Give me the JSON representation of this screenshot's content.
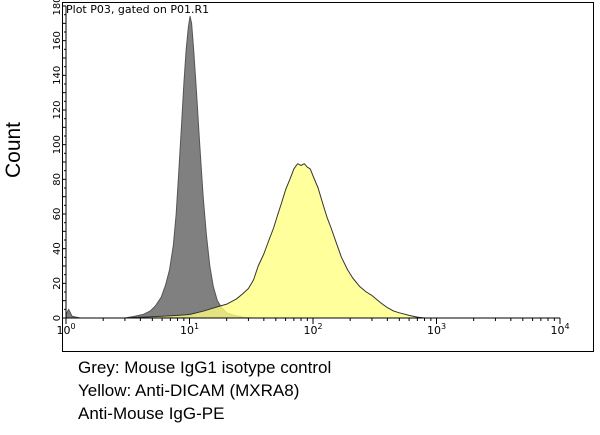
{
  "chart_data": {
    "type": "area",
    "title": "Plot P03, gated on P01.R1",
    "xlabel": "",
    "ylabel": "Count",
    "xscale": "log",
    "xlim": [
      1,
      10000
    ],
    "ylim": [
      0,
      180
    ],
    "x_ticks": [
      {
        "value": 1,
        "base": "10",
        "exp": "0"
      },
      {
        "value": 10,
        "base": "10",
        "exp": "1"
      },
      {
        "value": 100,
        "base": "10",
        "exp": "2"
      },
      {
        "value": 1000,
        "base": "10",
        "exp": "3"
      },
      {
        "value": 10000,
        "base": "10",
        "exp": "4"
      }
    ],
    "y_ticks": [
      0,
      20,
      40,
      60,
      80,
      100,
      120,
      140,
      160,
      180
    ],
    "grid": false,
    "series": [
      {
        "color": "#808080",
        "outline": "#555555",
        "points": [
          [
            1.0,
            2
          ],
          [
            1.05,
            5
          ],
          [
            1.12,
            1
          ],
          [
            1.3,
            0
          ],
          [
            3.0,
            0
          ],
          [
            3.6,
            1
          ],
          [
            4.2,
            2
          ],
          [
            4.8,
            4
          ],
          [
            5.3,
            7
          ],
          [
            5.9,
            12
          ],
          [
            6.4,
            19
          ],
          [
            6.9,
            28
          ],
          [
            7.4,
            42
          ],
          [
            7.8,
            60
          ],
          [
            8.2,
            85
          ],
          [
            8.6,
            110
          ],
          [
            9.0,
            135
          ],
          [
            9.4,
            155
          ],
          [
            9.8,
            168
          ],
          [
            10.1,
            174
          ],
          [
            10.4,
            170
          ],
          [
            10.8,
            155
          ],
          [
            11.4,
            130
          ],
          [
            12.1,
            100
          ],
          [
            12.9,
            70
          ],
          [
            13.7,
            48
          ],
          [
            14.6,
            30
          ],
          [
            15.6,
            18
          ],
          [
            16.8,
            10
          ],
          [
            18.2,
            6
          ],
          [
            20.0,
            3
          ],
          [
            23.0,
            1.5
          ],
          [
            27.0,
            0.5
          ],
          [
            32.0,
            0
          ]
        ]
      },
      {
        "color": "#FFFF80",
        "outline": "#333333",
        "points": [
          [
            1.0,
            0
          ],
          [
            3.0,
            0
          ],
          [
            6.0,
            1
          ],
          [
            8.0,
            1.5
          ],
          [
            10.0,
            2
          ],
          [
            13.0,
            4
          ],
          [
            16.0,
            6
          ],
          [
            20.0,
            8
          ],
          [
            24.0,
            11
          ],
          [
            27.0,
            14
          ],
          [
            30.0,
            17
          ],
          [
            33.0,
            22
          ],
          [
            36.0,
            30
          ],
          [
            40.0,
            37
          ],
          [
            44.0,
            45
          ],
          [
            48.0,
            52
          ],
          [
            52.0,
            60
          ],
          [
            56.0,
            67
          ],
          [
            60.0,
            74
          ],
          [
            65.0,
            80
          ],
          [
            70.0,
            86
          ],
          [
            75.0,
            89
          ],
          [
            80.0,
            88
          ],
          [
            85.0,
            89
          ],
          [
            90.0,
            87
          ],
          [
            95.0,
            86
          ],
          [
            100.0,
            82
          ],
          [
            110.0,
            75
          ],
          [
            120.0,
            66
          ],
          [
            130.0,
            58
          ],
          [
            140.0,
            52
          ],
          [
            155.0,
            43
          ],
          [
            170.0,
            35
          ],
          [
            190.0,
            28
          ],
          [
            210.0,
            23
          ],
          [
            240.0,
            18
          ],
          [
            270.0,
            15
          ],
          [
            300.0,
            13
          ],
          [
            350.0,
            9
          ],
          [
            400.0,
            6
          ],
          [
            450.0,
            4
          ],
          [
            500.0,
            3
          ],
          [
            600.0,
            1.5
          ],
          [
            700.0,
            0.5
          ],
          [
            800.0,
            0
          ]
        ]
      }
    ]
  },
  "caption": {
    "line1": "Grey: Mouse IgG1 isotype control",
    "line2": "Yellow: Anti-DICAM (MXRA8)",
    "line3": "Anti-Mouse IgG-PE"
  }
}
